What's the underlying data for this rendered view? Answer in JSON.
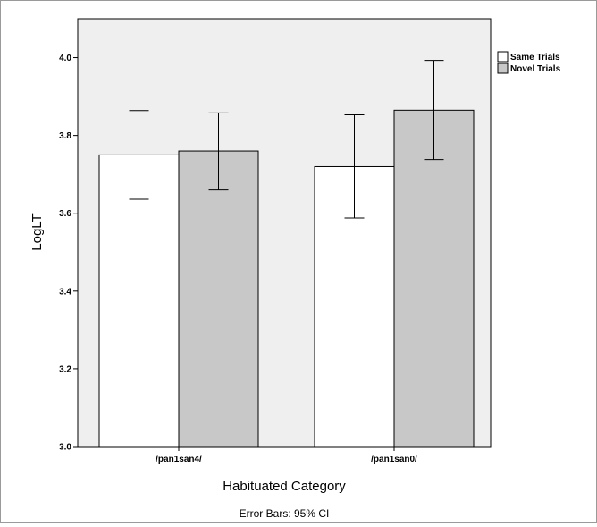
{
  "chart_data": {
    "type": "bar",
    "categories": [
      "/pan1san4/",
      "/pan1san0/"
    ],
    "series": [
      {
        "name": "Same Trials",
        "values": [
          3.75,
          3.72
        ],
        "ci_low": [
          3.636,
          3.588
        ],
        "ci_high": [
          3.864,
          3.853
        ],
        "color": "#ffffff"
      },
      {
        "name": "Novel Trials",
        "values": [
          3.76,
          3.865
        ],
        "ci_low": [
          3.66,
          3.738
        ],
        "ci_high": [
          3.858,
          3.993
        ],
        "color": "#c8c8c8"
      }
    ],
    "xlabel": "Habituated Category",
    "ylabel": "LogLT",
    "ylim": [
      3.0,
      4.1
    ],
    "yticks": [
      "3.0",
      "3.2",
      "3.4",
      "3.6",
      "3.8",
      "4.0"
    ],
    "footnote": "Error Bars: 95% CI",
    "legend_position": "top-right",
    "plot_background": "#efefef",
    "grid": false
  }
}
